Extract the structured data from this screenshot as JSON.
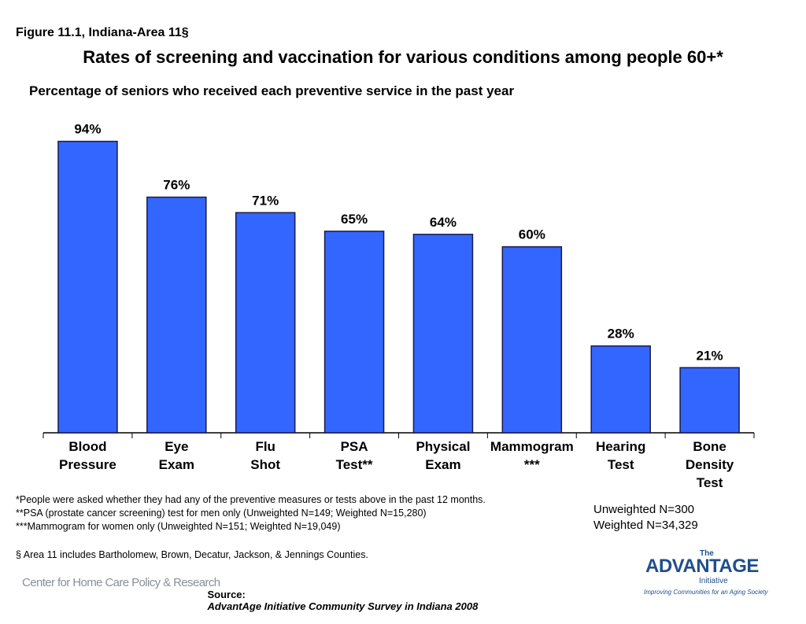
{
  "chart_data": {
    "type": "bar",
    "figure_label": "Figure 11.1, Indiana-Area 11§",
    "title": "Rates of screening and vaccination for various conditions among people 60+*",
    "subtitle": "Percentage of seniors who received each preventive service in the past year",
    "categories": [
      "Blood\nPressure",
      "Eye\nExam",
      "Flu\nShot",
      "PSA\nTest**",
      "Physical\nExam",
      "Mammogram\n***",
      "Hearing\nTest",
      "Bone\nDensity\nTest"
    ],
    "values": [
      94,
      76,
      71,
      65,
      64,
      60,
      28,
      21
    ],
    "value_labels": [
      "94%",
      "76%",
      "71%",
      "65%",
      "64%",
      "60%",
      "28%",
      "21%"
    ],
    "color": "#3366ff",
    "ylim": [
      0,
      100
    ],
    "footnotes": [
      "*People were asked whether they had any of the preventive measures or tests above in the past 12 months.",
      "**PSA (prostate cancer screening) test for men only (Unweighted N=149; Weighted N=15,280)",
      "***Mammogram for women only (Unweighted N=151; Weighted N=19,049)"
    ],
    "area_note": "§ Area 11 includes Bartholomew, Brown, Decatur, Jackson, & Jennings Counties.",
    "sample": [
      "Unweighted N=300",
      "Weighted N=34,329"
    ],
    "source_prefix": "Source:",
    "source": "AdvantAge Initiative Community Survey in Indiana 2008",
    "logo_left": "Center for Home Care Policy & Research",
    "logo_right": {
      "small": "The",
      "name": "ADVANTAGE",
      "sub": "Initiative",
      "tagline": "Improving Communities for an Aging Society"
    }
  }
}
